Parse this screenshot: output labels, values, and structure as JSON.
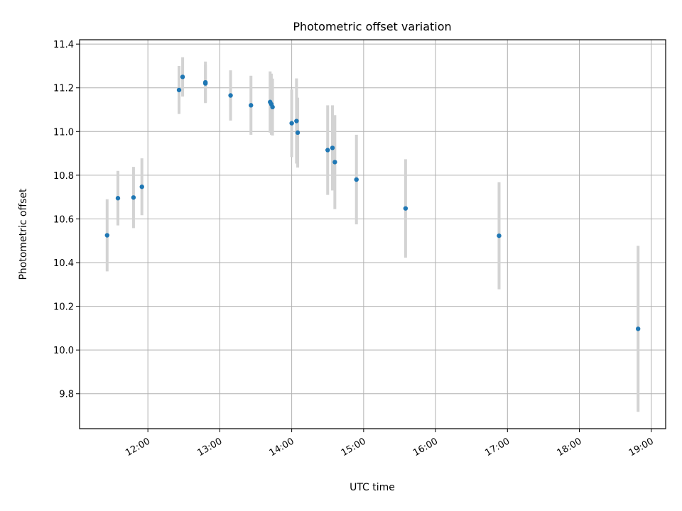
{
  "chart_data": {
    "type": "scatter",
    "title": "Photometric offset variation",
    "xlabel": "UTC time",
    "ylabel": "Photometric offset",
    "x_ticks": [
      "12:00",
      "13:00",
      "14:00",
      "15:00",
      "16:00",
      "17:00",
      "18:00",
      "19:00"
    ],
    "y_ticks": [
      "9.8",
      "10.0",
      "10.2",
      "10.4",
      "10.6",
      "10.8",
      "11.0",
      "11.2",
      "11.4"
    ],
    "xlim": [
      "11:03",
      "19:12"
    ],
    "ylim": [
      9.64,
      11.42
    ],
    "grid": true,
    "colors": {
      "point": "#1f77b4",
      "errorbar": "#d3d3d3"
    },
    "points": [
      {
        "t": "11:26",
        "y": 10.525,
        "err": 0.165
      },
      {
        "t": "11:35",
        "y": 10.695,
        "err": 0.125
      },
      {
        "t": "11:48",
        "y": 10.698,
        "err": 0.14
      },
      {
        "t": "11:55",
        "y": 10.747,
        "err": 0.13
      },
      {
        "t": "12:26",
        "y": 11.19,
        "err": 0.11
      },
      {
        "t": "12:29",
        "y": 11.25,
        "err": 0.09
      },
      {
        "t": "12:48",
        "y": 11.225,
        "err": 0.095
      },
      {
        "t": "12:48",
        "y": 11.22,
        "err": 0.085
      },
      {
        "t": "13:09",
        "y": 11.165,
        "err": 0.115
      },
      {
        "t": "13:26",
        "y": 11.12,
        "err": 0.135
      },
      {
        "t": "13:42",
        "y": 11.135,
        "err": 0.14
      },
      {
        "t": "13:43",
        "y": 11.125,
        "err": 0.14
      },
      {
        "t": "13:44",
        "y": 11.112,
        "err": 0.13
      },
      {
        "t": "14:00",
        "y": 11.038,
        "err": 0.155
      },
      {
        "t": "14:04",
        "y": 11.048,
        "err": 0.195
      },
      {
        "t": "14:05",
        "y": 10.995,
        "err": 0.16
      },
      {
        "t": "14:30",
        "y": 10.915,
        "err": 0.205
      },
      {
        "t": "14:34",
        "y": 10.925,
        "err": 0.195
      },
      {
        "t": "14:36",
        "y": 10.86,
        "err": 0.215
      },
      {
        "t": "14:54",
        "y": 10.78,
        "err": 0.205
      },
      {
        "t": "15:35",
        "y": 10.648,
        "err": 0.225
      },
      {
        "t": "16:53",
        "y": 10.523,
        "err": 0.245
      },
      {
        "t": "18:49",
        "y": 10.097,
        "err": 0.38
      }
    ]
  }
}
